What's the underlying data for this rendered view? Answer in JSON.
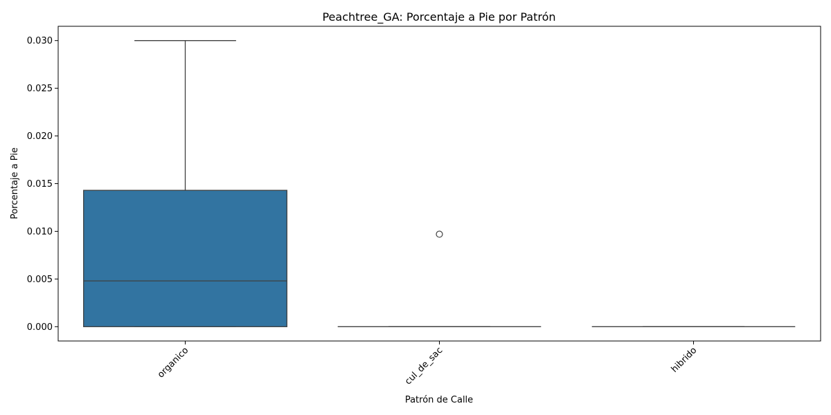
{
  "chart_data": {
    "type": "box",
    "title": "Peachtree_GA: Porcentaje a Pie por Patrón",
    "xlabel": "Patrón de Calle",
    "ylabel": "Porcentaje a Pie",
    "categories": [
      "organico",
      "cul_de_sac",
      "hibrido"
    ],
    "ylim": [
      -0.0015,
      0.0315
    ],
    "yticks": [
      0.0,
      0.005,
      0.01,
      0.015,
      0.02,
      0.025,
      0.03
    ],
    "ytick_labels": [
      "0.000",
      "0.005",
      "0.010",
      "0.015",
      "0.020",
      "0.025",
      "0.030"
    ],
    "grid": false,
    "box_color": "#3274a1",
    "line_color": "#3f3f3f",
    "boxes": [
      {
        "category": "organico",
        "whisker_low": 0.0,
        "q1": 0.0,
        "median": 0.0048,
        "q3": 0.0143,
        "whisker_high": 0.03,
        "outliers": []
      },
      {
        "category": "cul_de_sac",
        "whisker_low": 0.0,
        "q1": 0.0,
        "median": 0.0,
        "q3": 0.0,
        "whisker_high": 0.0,
        "outliers": [
          0.0097
        ]
      },
      {
        "category": "hibrido",
        "whisker_low": 0.0,
        "q1": 0.0,
        "median": 0.0,
        "q3": 0.0,
        "whisker_high": 0.0,
        "outliers": []
      }
    ]
  }
}
